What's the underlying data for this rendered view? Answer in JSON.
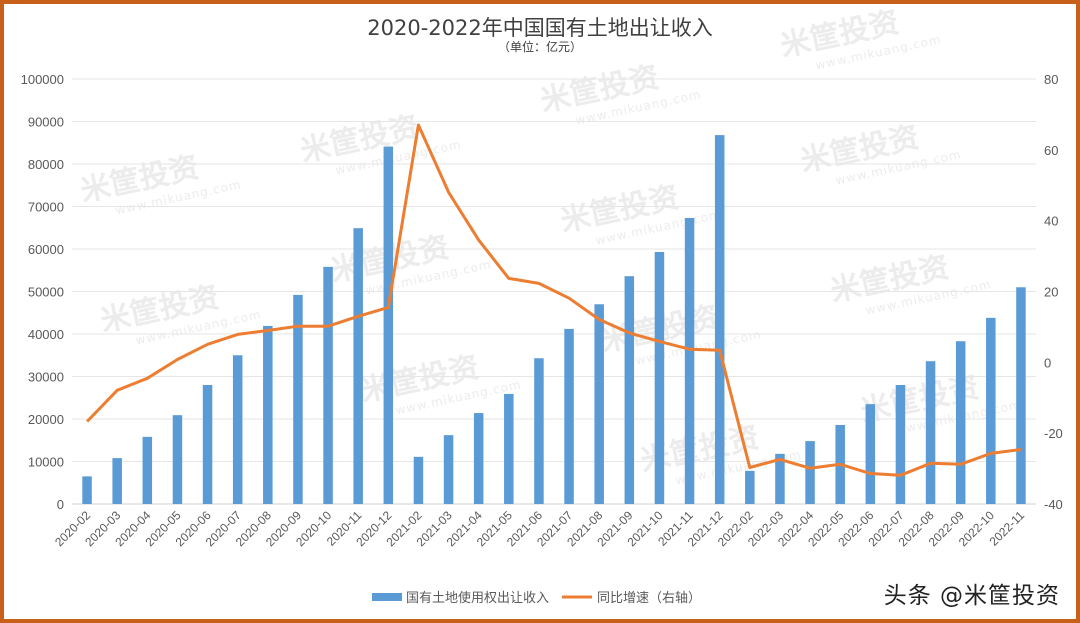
{
  "watermark": {
    "text": "米筐投资",
    "url": "www.mikuang.com"
  },
  "credit": "头条 @米筐投资",
  "colors": {
    "bar": "#5b9bd5",
    "line": "#ed7d31",
    "border": "#c8601a",
    "grid": "#e6e6e6",
    "text": "#595959"
  },
  "chart_data": {
    "type": "bar+line",
    "title": "2020-2022年中国国有土地出让收入",
    "subtitle": "（单位：亿元）",
    "xlabel": "",
    "ylabel": "",
    "ylim": [
      0,
      100000
    ],
    "y2lim": [
      -40,
      80
    ],
    "y_ticks": [
      0,
      10000,
      20000,
      30000,
      40000,
      50000,
      60000,
      70000,
      80000,
      90000,
      100000
    ],
    "y2_ticks": [
      -40,
      -20,
      0,
      20,
      40,
      60,
      80
    ],
    "grid": true,
    "legend_position": "bottom",
    "categories": [
      "2020-02",
      "2020-03",
      "2020-04",
      "2020-05",
      "2020-06",
      "2020-07",
      "2020-08",
      "2020-09",
      "2020-10",
      "2020-11",
      "2020-12",
      "2021-02",
      "2021-03",
      "2021-04",
      "2021-05",
      "2021-06",
      "2021-07",
      "2021-08",
      "2021-09",
      "2021-10",
      "2021-11",
      "2021-12",
      "2022-02",
      "2022-03",
      "2022-04",
      "2022-05",
      "2022-06",
      "2022-07",
      "2022-08",
      "2022-09",
      "2022-10",
      "2022-11"
    ],
    "series": [
      {
        "name": "国有土地使用权出让收入",
        "type": "bar",
        "axis": "left",
        "values": [
          6500,
          10800,
          15800,
          20900,
          28000,
          35000,
          41900,
          49200,
          55800,
          64900,
          84100,
          11100,
          16200,
          21400,
          25900,
          34300,
          41200,
          47000,
          53600,
          59300,
          67300,
          86800,
          7800,
          11800,
          14800,
          18600,
          23500,
          28000,
          33600,
          38300,
          43800,
          51000
        ]
      },
      {
        "name": "同比增速（右轴）",
        "type": "line",
        "axis": "right",
        "values": [
          -16.7,
          -7.9,
          -4.5,
          0.8,
          5.1,
          7.9,
          9.0,
          10.2,
          10.2,
          13.0,
          15.5,
          67.0,
          48.0,
          34.5,
          23.7,
          22.3,
          18.1,
          12.1,
          8.3,
          5.9,
          3.7,
          3.4,
          -29.7,
          -27.4,
          -29.9,
          -28.8,
          -31.4,
          -31.9,
          -28.5,
          -28.8,
          -25.7,
          -24.6
        ]
      }
    ]
  }
}
